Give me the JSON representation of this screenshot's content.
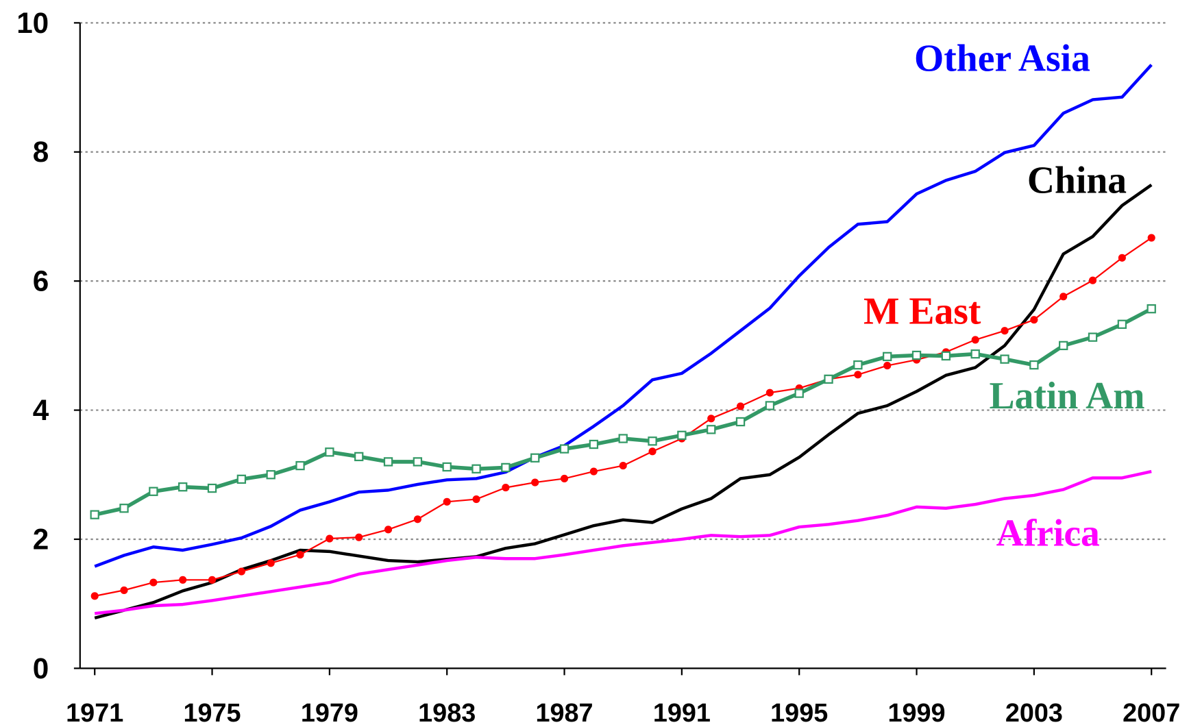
{
  "chart_data": {
    "type": "line",
    "x": [
      1971,
      1972,
      1973,
      1974,
      1975,
      1976,
      1977,
      1978,
      1979,
      1980,
      1981,
      1982,
      1983,
      1984,
      1985,
      1986,
      1987,
      1988,
      1989,
      1990,
      1991,
      1992,
      1993,
      1994,
      1995,
      1996,
      1997,
      1998,
      1999,
      2000,
      2001,
      2002,
      2003,
      2004,
      2005,
      2006,
      2007
    ],
    "xlim": [
      1970.5,
      2007.5
    ],
    "xticks": [
      1971,
      1975,
      1979,
      1983,
      1987,
      1991,
      1995,
      1999,
      2003,
      2007
    ],
    "ylim": [
      0,
      10
    ],
    "yticks": [
      0,
      2,
      4,
      6,
      8,
      10
    ],
    "grid": true,
    "series": [
      {
        "name": "Other Asia",
        "color": "#0000ff",
        "marker": "none",
        "values": [
          1.58,
          1.75,
          1.88,
          1.83,
          1.92,
          2.02,
          2.2,
          2.45,
          2.58,
          2.73,
          2.76,
          2.85,
          2.92,
          2.94,
          3.04,
          3.27,
          3.45,
          3.75,
          4.07,
          4.47,
          4.57,
          4.88,
          5.23,
          5.58,
          6.08,
          6.52,
          6.88,
          6.92,
          7.35,
          7.56,
          7.7,
          7.99,
          8.1,
          8.6,
          8.81,
          8.85,
          9.35
        ]
      },
      {
        "name": "China",
        "color": "#000000",
        "marker": "none",
        "values": [
          0.78,
          0.9,
          1.02,
          1.2,
          1.33,
          1.53,
          1.67,
          1.83,
          1.81,
          1.74,
          1.67,
          1.65,
          1.69,
          1.73,
          1.86,
          1.93,
          2.07,
          2.21,
          2.3,
          2.26,
          2.47,
          2.63,
          2.94,
          3.0,
          3.27,
          3.62,
          3.95,
          4.07,
          4.29,
          4.54,
          4.66,
          5.0,
          5.56,
          6.42,
          6.69,
          7.17,
          7.49
        ]
      },
      {
        "name": "M East",
        "color": "#ff0000",
        "marker": "circle",
        "values": [
          1.12,
          1.21,
          1.33,
          1.37,
          1.37,
          1.5,
          1.63,
          1.76,
          2.01,
          2.03,
          2.15,
          2.31,
          2.58,
          2.62,
          2.8,
          2.88,
          2.94,
          3.05,
          3.14,
          3.36,
          3.56,
          3.87,
          4.06,
          4.27,
          4.34,
          4.48,
          4.55,
          4.69,
          4.78,
          4.9,
          5.09,
          5.23,
          5.4,
          5.76,
          6.01,
          6.36,
          6.67
        ]
      },
      {
        "name": "Latin Am",
        "color": "#339966",
        "marker": "square",
        "values": [
          2.38,
          2.48,
          2.74,
          2.81,
          2.79,
          2.93,
          3.0,
          3.14,
          3.35,
          3.28,
          3.2,
          3.2,
          3.12,
          3.09,
          3.11,
          3.26,
          3.4,
          3.47,
          3.56,
          3.52,
          3.61,
          3.7,
          3.82,
          4.07,
          4.26,
          4.48,
          4.7,
          4.83,
          4.85,
          4.84,
          4.87,
          4.79,
          4.7,
          5.0,
          5.13,
          5.33,
          5.57
        ]
      },
      {
        "name": "Africa",
        "color": "#ff00ff",
        "marker": "none",
        "values": [
          0.85,
          0.9,
          0.97,
          0.99,
          1.05,
          1.12,
          1.19,
          1.26,
          1.33,
          1.46,
          1.53,
          1.6,
          1.67,
          1.72,
          1.7,
          1.7,
          1.76,
          1.83,
          1.9,
          1.95,
          2.0,
          2.06,
          2.04,
          2.06,
          2.19,
          2.23,
          2.29,
          2.37,
          2.5,
          2.48,
          2.54,
          2.63,
          2.68,
          2.77,
          2.95,
          2.95,
          3.05
        ]
      }
    ]
  }
}
